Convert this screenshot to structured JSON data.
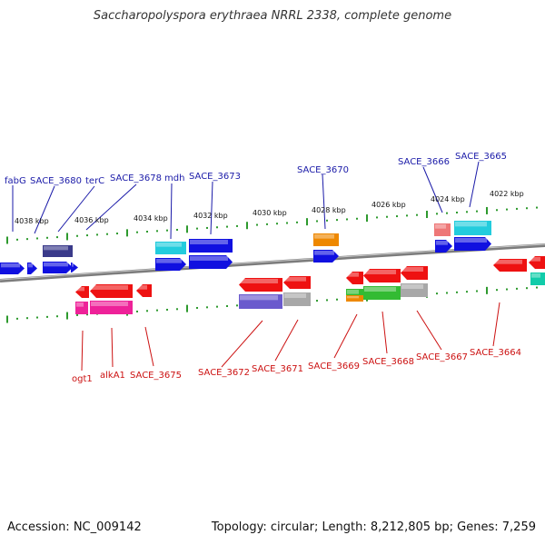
{
  "title": "Saccharopolyspora erythraea NRRL 2338, complete genome",
  "footer": {
    "accession": "Accession: NC_009142",
    "topology": "Topology: circular; Length: 8,212,805 bp; Genes: 7,259"
  },
  "colors": {
    "backbone": "#8a8a8a",
    "tick": "#2e9a2e",
    "forward_label": "#1a1aa8",
    "reverse_label": "#cc1111"
  },
  "kbp_labels": [
    "4038 kbp",
    "4036 kbp",
    "4034 kbp",
    "4032 kbp",
    "4030 kbp",
    "4028 kbp",
    "4026 kbp",
    "4024 kbp",
    "4022 kbp"
  ],
  "forward_labels": [
    "fabG",
    "SACE_3680",
    "terC",
    "SACE_3678",
    "mdh",
    "SACE_3673",
    "SACE_3670",
    "SACE_3666",
    "SACE_3665"
  ],
  "reverse_labels": [
    "ogt1",
    "alkA1",
    "SACE_3675",
    "SACE_3672",
    "SACE_3671",
    "SACE_3669",
    "SACE_3668",
    "SACE_3667",
    "SACE_3664"
  ],
  "feature_colors": {
    "forward_gene": "#1010e0",
    "reverse_gene": "#ee1111",
    "navy": "#3a3a8a",
    "cyan": "#22ccdd",
    "orange": "#ee8800",
    "salmon": "#ee7777",
    "magenta": "#ee2299",
    "slate": "#6a5acd",
    "grey": "#a8a8a8",
    "green": "#33bb33",
    "teal": "#11ccaa"
  }
}
